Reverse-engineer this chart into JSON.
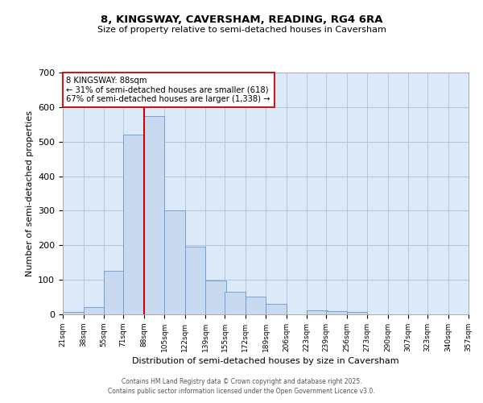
{
  "title": "8, KINGSWAY, CAVERSHAM, READING, RG4 6RA",
  "subtitle": "Size of property relative to semi-detached houses in Caversham",
  "xlabel": "Distribution of semi-detached houses by size in Caversham",
  "ylabel": "Number of semi-detached properties",
  "bin_labels": [
    "21sqm",
    "38sqm",
    "55sqm",
    "71sqm",
    "88sqm",
    "105sqm",
    "122sqm",
    "139sqm",
    "155sqm",
    "172sqm",
    "189sqm",
    "206sqm",
    "223sqm",
    "239sqm",
    "256sqm",
    "273sqm",
    "290sqm",
    "307sqm",
    "323sqm",
    "340sqm",
    "357sqm"
  ],
  "bin_edges": [
    21,
    38,
    55,
    71,
    88,
    105,
    122,
    139,
    155,
    172,
    189,
    206,
    223,
    239,
    256,
    273,
    290,
    307,
    323,
    340,
    357
  ],
  "bar_values": [
    8,
    20,
    125,
    520,
    575,
    300,
    195,
    98,
    65,
    52,
    30,
    0,
    12,
    10,
    7,
    0,
    0,
    0,
    0,
    0
  ],
  "property_size": 88,
  "property_label": "8 KINGSWAY: 88sqm",
  "pct_smaller": 31,
  "pct_larger": 67,
  "n_smaller": 618,
  "n_larger": 1338,
  "bar_color": "#c9d9f0",
  "bar_edge_color": "#6699cc",
  "vline_color": "#cc0000",
  "annotation_box_edge": "#cc0000",
  "ylim": [
    0,
    700
  ],
  "yticks": [
    0,
    100,
    200,
    300,
    400,
    500,
    600,
    700
  ],
  "background_color": "#ffffff",
  "axes_bg_color": "#dce9f8",
  "grid_color": "#b0bfd0",
  "footer1": "Contains HM Land Registry data © Crown copyright and database right 2025.",
  "footer2": "Contains public sector information licensed under the Open Government Licence v3.0."
}
